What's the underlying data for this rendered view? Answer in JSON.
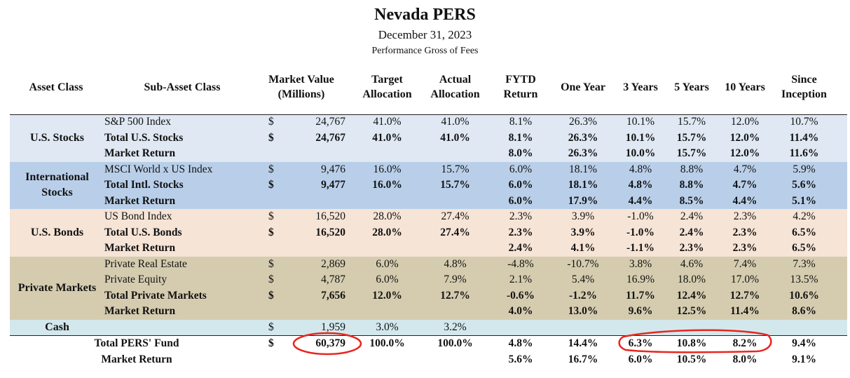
{
  "title": "Nevada PERS",
  "date": "December 31, 2023",
  "note": "Performance Gross of Fees",
  "headers": {
    "asset_class": "Asset Class",
    "sub_asset_class": "Sub-Asset Class",
    "market_value": [
      "Market Value",
      "(Millions)"
    ],
    "target": [
      "Target",
      "Allocation"
    ],
    "actual": [
      "Actual",
      "Allocation"
    ],
    "fytd": [
      "FYTD",
      "Return"
    ],
    "one_year": "One Year",
    "three_years": "3 Years",
    "five_years": "5 Years",
    "ten_years": "10 Years",
    "since": [
      "Since",
      "Inception"
    ]
  },
  "groups": [
    {
      "label": [
        "U.S. Stocks"
      ],
      "color": "#dfe8f3"
    },
    {
      "label": [
        "International",
        "Stocks"
      ],
      "color": "#b9cfe9"
    },
    {
      "label": [
        "U.S. Bonds"
      ],
      "color": "#f6e4d6"
    },
    {
      "label": [
        "Private Markets"
      ],
      "color": "#d5ccaf"
    },
    {
      "label": [
        "Cash"
      ],
      "color": "#d3e8ec"
    }
  ],
  "rows": [
    {
      "group": 0,
      "bold": false,
      "sub": "S&P 500 Index",
      "dollar": "$",
      "mv": "24,767",
      "target": "41.0%",
      "actual": "41.0%",
      "fytd": "8.1%",
      "y1": "26.3%",
      "y3": "10.1%",
      "y5": "15.7%",
      "y10": "12.0%",
      "si": "10.7%"
    },
    {
      "group": 0,
      "bold": true,
      "sub": "Total U.S. Stocks",
      "dollar": "$",
      "mv": "24,767",
      "target": "41.0%",
      "actual": "41.0%",
      "fytd": "8.1%",
      "y1": "26.3%",
      "y3": "10.1%",
      "y5": "15.7%",
      "y10": "12.0%",
      "si": "11.4%"
    },
    {
      "group": 0,
      "bold": true,
      "sub": "Market Return",
      "dollar": "",
      "mv": "",
      "target": "",
      "actual": "",
      "fytd": "8.0%",
      "y1": "26.3%",
      "y3": "10.0%",
      "y5": "15.7%",
      "y10": "12.0%",
      "si": "11.6%"
    },
    {
      "group": 1,
      "bold": false,
      "sub": "MSCI World x US Index",
      "dollar": "$",
      "mv": "9,476",
      "target": "16.0%",
      "actual": "15.7%",
      "fytd": "6.0%",
      "y1": "18.1%",
      "y3": "4.8%",
      "y5": "8.8%",
      "y10": "4.7%",
      "si": "5.9%"
    },
    {
      "group": 1,
      "bold": true,
      "sub": "Total Intl. Stocks",
      "dollar": "$",
      "mv": "9,477",
      "target": "16.0%",
      "actual": "15.7%",
      "fytd": "6.0%",
      "y1": "18.1%",
      "y3": "4.8%",
      "y5": "8.8%",
      "y10": "4.7%",
      "si": "5.6%"
    },
    {
      "group": 1,
      "bold": true,
      "sub": "Market Return",
      "dollar": "",
      "mv": "",
      "target": "",
      "actual": "",
      "fytd": "6.0%",
      "y1": "17.9%",
      "y3": "4.4%",
      "y5": "8.5%",
      "y10": "4.4%",
      "si": "5.1%"
    },
    {
      "group": 2,
      "bold": false,
      "sub": "US Bond Index",
      "dollar": "$",
      "mv": "16,520",
      "target": "28.0%",
      "actual": "27.4%",
      "fytd": "2.3%",
      "y1": "3.9%",
      "y3": "-1.0%",
      "y5": "2.4%",
      "y10": "2.3%",
      "si": "4.2%"
    },
    {
      "group": 2,
      "bold": true,
      "sub": "Total U.S. Bonds",
      "dollar": "$",
      "mv": "16,520",
      "target": "28.0%",
      "actual": "27.4%",
      "fytd": "2.3%",
      "y1": "3.9%",
      "y3": "-1.0%",
      "y5": "2.4%",
      "y10": "2.3%",
      "si": "6.5%"
    },
    {
      "group": 2,
      "bold": true,
      "sub": "Market Return",
      "dollar": "",
      "mv": "",
      "target": "",
      "actual": "",
      "fytd": "2.4%",
      "y1": "4.1%",
      "y3": "-1.1%",
      "y5": "2.3%",
      "y10": "2.3%",
      "si": "6.5%"
    },
    {
      "group": 3,
      "bold": false,
      "sub": "Private Real Estate",
      "dollar": "$",
      "mv": "2,869",
      "target": "6.0%",
      "actual": "4.8%",
      "fytd": "-4.8%",
      "y1": "-10.7%",
      "y3": "3.8%",
      "y5": "4.6%",
      "y10": "7.4%",
      "si": "7.3%"
    },
    {
      "group": 3,
      "bold": false,
      "sub": "Private Equity",
      "dollar": "$",
      "mv": "4,787",
      "target": "6.0%",
      "actual": "7.9%",
      "fytd": "2.1%",
      "y1": "5.4%",
      "y3": "16.9%",
      "y5": "18.0%",
      "y10": "17.0%",
      "si": "13.5%"
    },
    {
      "group": 3,
      "bold": true,
      "sub": "Total Private Markets",
      "dollar": "$",
      "mv": "7,656",
      "target": "12.0%",
      "actual": "12.7%",
      "fytd": "-0.6%",
      "y1": "-1.2%",
      "y3": "11.7%",
      "y5": "12.4%",
      "y10": "12.7%",
      "si": "10.6%"
    },
    {
      "group": 3,
      "bold": true,
      "sub": "Market Return",
      "dollar": "",
      "mv": "",
      "target": "",
      "actual": "",
      "fytd": "4.0%",
      "y1": "13.0%",
      "y3": "9.6%",
      "y5": "12.5%",
      "y10": "11.4%",
      "si": "8.6%"
    },
    {
      "group": 4,
      "bold": false,
      "sub": "",
      "dollar": "$",
      "mv": "1,959",
      "target": "3.0%",
      "actual": "3.2%",
      "fytd": "",
      "y1": "",
      "y3": "",
      "y5": "",
      "y10": "",
      "si": ""
    }
  ],
  "totals": [
    {
      "label": "Total PERS' Fund",
      "dollar": "$",
      "mv": "60,379",
      "target": "100.0%",
      "actual": "100.0%",
      "fytd": "4.8%",
      "y1": "14.4%",
      "y3": "6.3%",
      "y5": "10.8%",
      "y10": "8.2%",
      "si": "9.4%"
    },
    {
      "label": "Market Return",
      "dollar": "",
      "mv": "",
      "target": "",
      "actual": "",
      "fytd": "5.6%",
      "y1": "16.7%",
      "y3": "6.0%",
      "y5": "10.5%",
      "y10": "8.0%",
      "si": "9.1%"
    }
  ],
  "highlight_color": "#e8261f"
}
